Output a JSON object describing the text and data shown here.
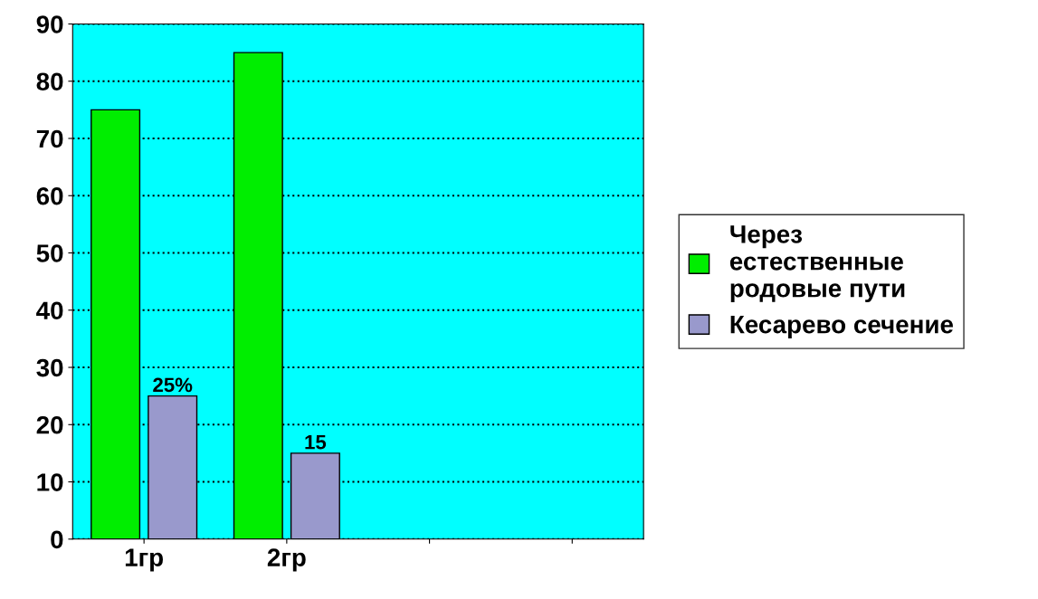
{
  "chart_data": {
    "type": "bar",
    "categories": [
      "1гр",
      "2гр",
      null,
      null
    ],
    "series": [
      {
        "name": "Через естественные родовые пути",
        "color": "#00ee00",
        "values": [
          75,
          85,
          null,
          null
        ]
      },
      {
        "name": "Кесарево сечение",
        "color": "#9999cc",
        "values": [
          25,
          15,
          null,
          null
        ],
        "value_labels": [
          "25%",
          "15",
          null,
          null
        ]
      }
    ],
    "ylim": [
      0,
      90
    ],
    "yticks": [
      0,
      10,
      20,
      30,
      40,
      50,
      60,
      70,
      80,
      90
    ],
    "grid": "y",
    "legend": "right"
  }
}
